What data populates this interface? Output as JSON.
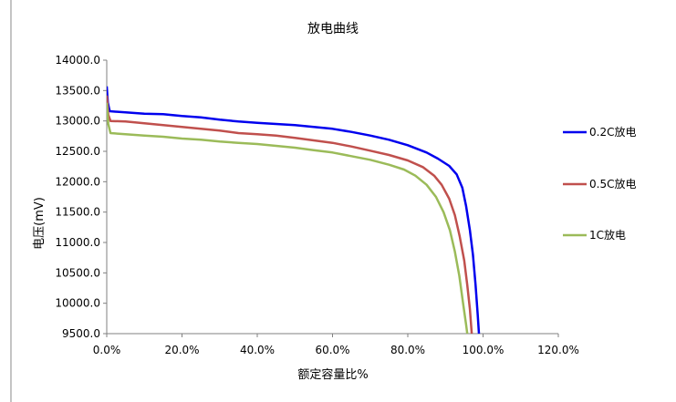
{
  "chart_data": {
    "type": "line",
    "title": "放电曲线",
    "xlabel": "额定容量比%",
    "ylabel": "电压(mV)",
    "xlim": [
      0,
      120
    ],
    "ylim": [
      9500,
      14000
    ],
    "x_ticks": [
      0,
      20,
      40,
      60,
      80,
      100,
      120
    ],
    "y_ticks": [
      9500,
      10000,
      10500,
      11000,
      11500,
      12000,
      12500,
      13000,
      13500,
      14000
    ],
    "x_tick_labels": [
      "0.0%",
      "20.0%",
      "40.0%",
      "60.0%",
      "80.0%",
      "100.0%",
      "120.0%"
    ],
    "y_tick_labels": [
      "9500.0",
      "10000.0",
      "10500.0",
      "11000.0",
      "11500.0",
      "12000.0",
      "12500.0",
      "13000.0",
      "13500.0",
      "14000.0"
    ],
    "grid": false,
    "legend_position": "right",
    "series": [
      {
        "name": "0.2C放电",
        "color": "#0000ee",
        "points": [
          [
            0,
            13570
          ],
          [
            0.3,
            13300
          ],
          [
            0.8,
            13160
          ],
          [
            5,
            13140
          ],
          [
            10,
            13120
          ],
          [
            15,
            13110
          ],
          [
            20,
            13080
          ],
          [
            25,
            13060
          ],
          [
            30,
            13020
          ],
          [
            35,
            12990
          ],
          [
            40,
            12970
          ],
          [
            45,
            12950
          ],
          [
            50,
            12930
          ],
          [
            55,
            12900
          ],
          [
            60,
            12870
          ],
          [
            65,
            12820
          ],
          [
            70,
            12760
          ],
          [
            75,
            12690
          ],
          [
            80,
            12600
          ],
          [
            85,
            12480
          ],
          [
            88,
            12380
          ],
          [
            91,
            12260
          ],
          [
            93,
            12120
          ],
          [
            94.5,
            11900
          ],
          [
            95.5,
            11600
          ],
          [
            96.5,
            11200
          ],
          [
            97.3,
            10800
          ],
          [
            98,
            10300
          ],
          [
            98.6,
            9800
          ],
          [
            98.9,
            9500
          ]
        ]
      },
      {
        "name": "0.5C放电",
        "color": "#c0504d",
        "points": [
          [
            0,
            13420
          ],
          [
            0.4,
            13100
          ],
          [
            1,
            13000
          ],
          [
            5,
            12990
          ],
          [
            10,
            12960
          ],
          [
            15,
            12930
          ],
          [
            20,
            12900
          ],
          [
            25,
            12870
          ],
          [
            30,
            12840
          ],
          [
            35,
            12800
          ],
          [
            40,
            12780
          ],
          [
            45,
            12760
          ],
          [
            50,
            12720
          ],
          [
            55,
            12680
          ],
          [
            60,
            12640
          ],
          [
            65,
            12580
          ],
          [
            70,
            12510
          ],
          [
            75,
            12440
          ],
          [
            80,
            12350
          ],
          [
            84,
            12240
          ],
          [
            87,
            12100
          ],
          [
            89,
            11950
          ],
          [
            91,
            11720
          ],
          [
            92.5,
            11450
          ],
          [
            93.8,
            11100
          ],
          [
            95,
            10700
          ],
          [
            95.8,
            10300
          ],
          [
            96.5,
            9900
          ],
          [
            97,
            9500
          ]
        ]
      },
      {
        "name": "1C放电",
        "color": "#9bbb59",
        "points": [
          [
            0,
            13300
          ],
          [
            0.4,
            12950
          ],
          [
            1,
            12800
          ],
          [
            5,
            12780
          ],
          [
            10,
            12760
          ],
          [
            15,
            12740
          ],
          [
            20,
            12710
          ],
          [
            25,
            12690
          ],
          [
            30,
            12660
          ],
          [
            35,
            12640
          ],
          [
            40,
            12620
          ],
          [
            45,
            12590
          ],
          [
            50,
            12560
          ],
          [
            55,
            12520
          ],
          [
            60,
            12480
          ],
          [
            65,
            12420
          ],
          [
            70,
            12360
          ],
          [
            75,
            12280
          ],
          [
            79,
            12200
          ],
          [
            82,
            12100
          ],
          [
            85,
            11950
          ],
          [
            87.5,
            11750
          ],
          [
            89.5,
            11500
          ],
          [
            91.2,
            11200
          ],
          [
            92.5,
            10850
          ],
          [
            93.7,
            10450
          ],
          [
            94.7,
            10000
          ],
          [
            95.5,
            9650
          ],
          [
            95.8,
            9500
          ]
        ]
      }
    ]
  }
}
